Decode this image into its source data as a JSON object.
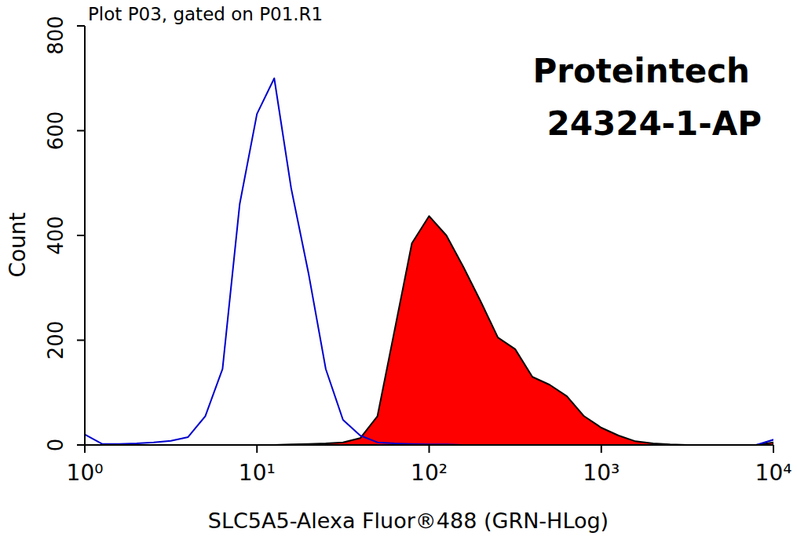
{
  "chart_data": {
    "type": "line",
    "title": "Plot P03, gated on P01.R1",
    "annotations": [
      "Proteintech",
      "24324-1-AP"
    ],
    "x_label": "SLC5A5-Alexa Fluor®488 (GRN-HLog)",
    "y_label": "Count",
    "log": "x",
    "xlim": [
      1,
      10000
    ],
    "xticks": [
      {
        "value": 1,
        "label": "10⁰"
      },
      {
        "value": 10,
        "label": "10¹"
      },
      {
        "value": 100,
        "label": "10²"
      },
      {
        "value": 1000,
        "label": "10³"
      },
      {
        "value": 10000,
        "label": "10⁴"
      }
    ],
    "ylim": [
      0,
      800
    ],
    "yticks": [
      0,
      200,
      400,
      600,
      800
    ],
    "x": [
      1,
      1.26,
      1.58,
      2,
      2.51,
      3.16,
      3.98,
      5.01,
      6.31,
      7.94,
      10,
      12.6,
      15.8,
      20,
      25.1,
      31.6,
      39.8,
      50.1,
      63.1,
      79.4,
      100,
      126,
      158,
      200,
      251,
      316,
      398,
      501,
      631,
      794,
      1000,
      1260,
      1580,
      2000,
      2510,
      3160,
      3980,
      5010,
      6310,
      7940,
      10000
    ],
    "series": [
      {
        "type": "line",
        "color": "#0000cc",
        "values": [
          20,
          2,
          2,
          3,
          5,
          8,
          15,
          55,
          145,
          460,
          632,
          700,
          490,
          325,
          145,
          48,
          18,
          5,
          3,
          2,
          1,
          1,
          0,
          0,
          0,
          0,
          0,
          0,
          0,
          0,
          0,
          0,
          0,
          0,
          0,
          0,
          0,
          0,
          0,
          0,
          10
        ]
      },
      {
        "type": "area",
        "color": "#ff0000",
        "values": [
          0,
          0,
          0,
          0,
          0,
          0,
          0,
          0,
          0,
          0,
          0,
          0,
          1,
          2,
          3,
          5,
          13,
          55,
          220,
          385,
          437,
          400,
          340,
          273,
          205,
          183,
          130,
          115,
          93,
          55,
          33,
          18,
          7,
          3,
          1,
          0,
          0,
          0,
          0,
          0,
          5
        ]
      }
    ]
  }
}
